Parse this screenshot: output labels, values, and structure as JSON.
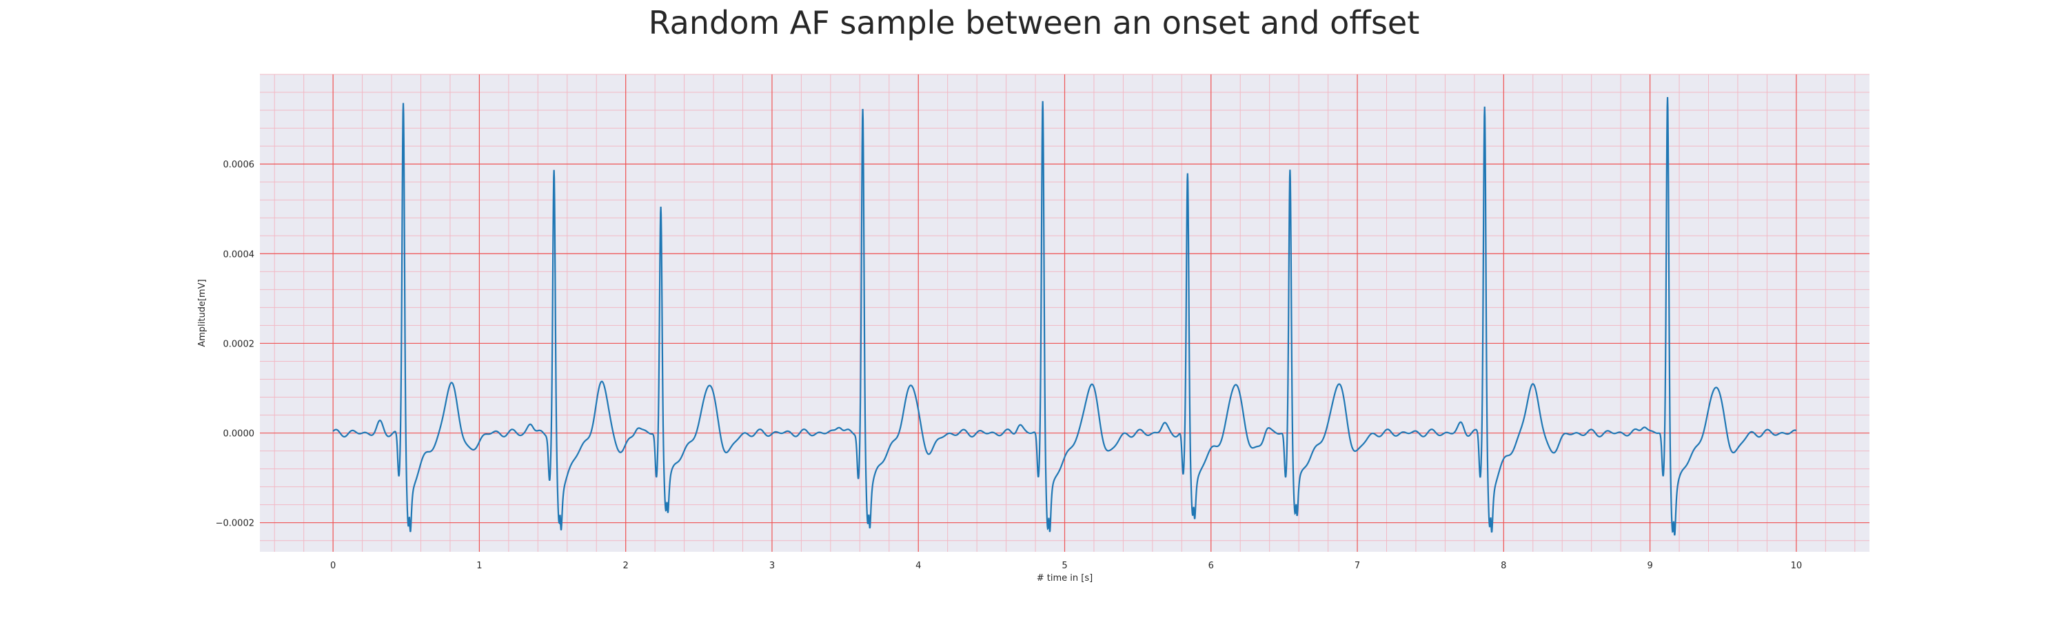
{
  "chart_data": {
    "type": "line",
    "title": "Random AF sample between an onset and offset",
    "xlabel": "# time in [s]",
    "ylabel": "Amplitude[mV]",
    "xlim": [
      -0.5,
      10.5
    ],
    "ylim": [
      -0.000265,
      0.0008
    ],
    "xticks": [
      0,
      1,
      2,
      3,
      4,
      5,
      6,
      7,
      8,
      9,
      10
    ],
    "yticks": [
      -0.0002,
      0.0,
      0.0002,
      0.0004,
      0.0006
    ],
    "xtick_labels": [
      "0",
      "1",
      "2",
      "3",
      "4",
      "5",
      "6",
      "7",
      "8",
      "9",
      "10"
    ],
    "ytick_labels": [
      "−0.0002",
      "0.0000",
      "0.0002",
      "0.0004",
      "0.0006"
    ],
    "grid": true,
    "minor_grid": true,
    "colors": {
      "background": "#eaeaf2",
      "major_grid": "#ee5555",
      "minor_grid": "#f2b8c4",
      "line": "#1f77b4"
    },
    "series": [
      {
        "beats": [
          {
            "t": 0.48,
            "r": 0.00074,
            "s": -0.00021
          },
          {
            "t": 1.51,
            "r": 0.000585,
            "s": -0.000205
          },
          {
            "t": 2.24,
            "r": 0.00051,
            "s": -0.00017
          },
          {
            "t": 3.62,
            "r": 0.000725,
            "s": -0.0002
          },
          {
            "t": 4.85,
            "r": 0.00075,
            "s": -0.000215
          },
          {
            "t": 5.84,
            "r": 0.00058,
            "s": -0.00018
          },
          {
            "t": 6.54,
            "r": 0.000595,
            "s": -0.00018
          },
          {
            "t": 7.87,
            "r": 0.000735,
            "s": -0.00021
          },
          {
            "t": 9.12,
            "r": 0.000755,
            "s": -0.000215
          }
        ],
        "x_range": [
          0,
          10
        ],
        "baseline": 0.0,
        "t_wave_amplitude": 0.00012,
        "t_wave_delay": 0.33
      }
    ]
  }
}
